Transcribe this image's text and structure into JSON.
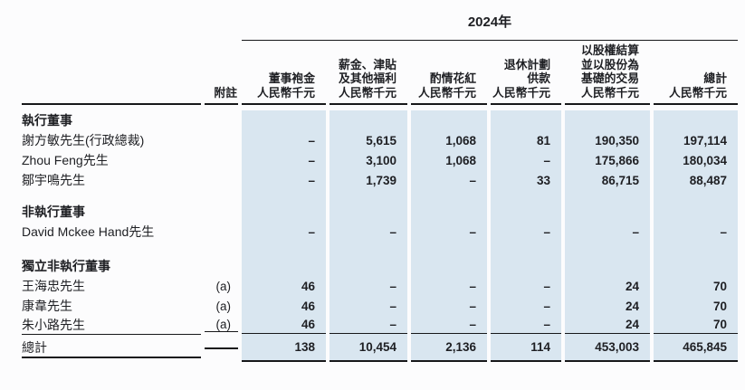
{
  "page": {
    "background": "#fcfcfd",
    "text_color": "#1e1f23",
    "shade_color": "#d9e6f0",
    "line_color": "#17181a"
  },
  "year_header": "2024年",
  "columns": [
    {
      "id": "note",
      "label_lines": [
        "附註"
      ]
    },
    {
      "id": "fees",
      "label_lines": [
        "董事袍金",
        "人民幣千元"
      ]
    },
    {
      "id": "salaries",
      "label_lines": [
        "薪金、津貼",
        "及其他福利",
        "人民幣千元"
      ]
    },
    {
      "id": "bonus",
      "label_lines": [
        "酌情花紅",
        "人民幣千元"
      ]
    },
    {
      "id": "retirement",
      "label_lines": [
        "退休計劃",
        "供款",
        "人民幣千元"
      ]
    },
    {
      "id": "equity",
      "label_lines": [
        "以股權結算",
        "並以股份為",
        "基礎的交易",
        "人民幣千元"
      ]
    },
    {
      "id": "total",
      "label_lines": [
        "總計",
        "人民幣千元"
      ]
    }
  ],
  "rows": [
    {
      "type": "section",
      "label": "執行董事"
    },
    {
      "type": "data",
      "label": "謝方敏先生(行政總裁)",
      "note": "",
      "values": [
        "–",
        "5,615",
        "1,068",
        "81",
        "190,350",
        "197,114"
      ]
    },
    {
      "type": "data",
      "label": "Zhou Feng先生",
      "note": "",
      "values": [
        "–",
        "3,100",
        "1,068",
        "–",
        "175,866",
        "180,034"
      ]
    },
    {
      "type": "data",
      "label": "鄒宇鳴先生",
      "note": "",
      "values": [
        "–",
        "1,739",
        "–",
        "33",
        "86,715",
        "88,487"
      ]
    },
    {
      "type": "spacer"
    },
    {
      "type": "section",
      "label": "非執行董事"
    },
    {
      "type": "data",
      "label": "David Mckee Hand先生",
      "note": "",
      "values": [
        "–",
        "–",
        "–",
        "–",
        "–",
        "–"
      ]
    },
    {
      "type": "spacer"
    },
    {
      "type": "section",
      "label": "獨立非執行董事"
    },
    {
      "type": "data",
      "label": "王海忠先生",
      "note": "(a)",
      "values": [
        "46",
        "–",
        "–",
        "–",
        "24",
        "70"
      ]
    },
    {
      "type": "data",
      "label": "康韋先生",
      "note": "(a)",
      "values": [
        "46",
        "–",
        "–",
        "–",
        "24",
        "70"
      ]
    },
    {
      "type": "data",
      "label": "朱小路先生",
      "note": "(a)",
      "values": [
        "46",
        "–",
        "–",
        "–",
        "24",
        "70"
      ]
    },
    {
      "type": "total",
      "label": "總計",
      "note": "",
      "values": [
        "138",
        "10,454",
        "2,136",
        "114",
        "453,003",
        "465,845"
      ]
    }
  ]
}
